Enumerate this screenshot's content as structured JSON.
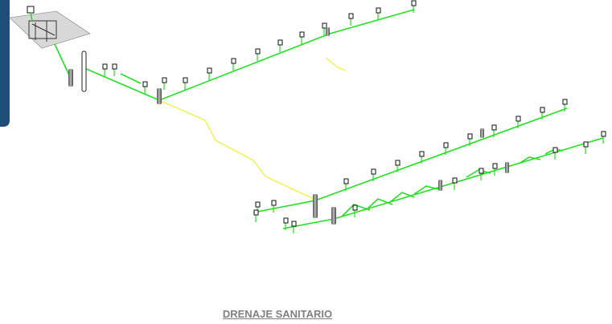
{
  "caption": "DRENAJE SANITARIO"
}
